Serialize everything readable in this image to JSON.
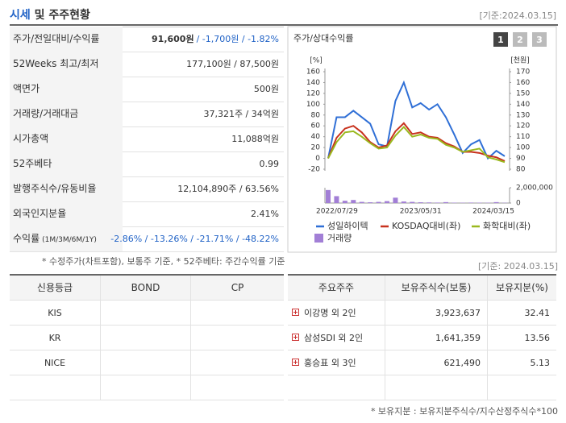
{
  "header": {
    "title": "시세",
    "title_rest": " 및 주주현황",
    "date": "[기준:2024.03.15]"
  },
  "summary": {
    "rows": [
      {
        "label": "주가/전일대비/수익률",
        "value": "91,600원",
        "change": "/ -1,700원 / -1.82%",
        "change_color": "#2062c6"
      },
      {
        "label": "52Weeks 최고/최저",
        "value": "177,100원 / 87,500원"
      },
      {
        "label": "액면가",
        "value": "500원"
      },
      {
        "label": "거래량/거래대금",
        "value": "37,321주 / 34억원"
      },
      {
        "label": "시가총액",
        "value": "11,088억원"
      },
      {
        "label": "52주베타",
        "value": "0.99"
      },
      {
        "label": "발행주식수/유동비율",
        "value": "12,104,890주 / 63.56%"
      },
      {
        "label": "외국인지분율",
        "value": "2.41%"
      },
      {
        "label": "수익률",
        "sublabel": "(1M/3M/6M/1Y)",
        "value": "-2.86% / -13.26% / -21.71% / -48.22%",
        "color": "#2062c6"
      }
    ],
    "note": "* 수정주가(차트포함), 보통주 기준, * 52주베타: 주간수익률 기준"
  },
  "chart_data": {
    "type": "line",
    "title": "주가/상대수익률",
    "tabs": [
      "1",
      "2",
      "3"
    ],
    "ylabel": "[%]",
    "y2label": "[천원]",
    "categories": [
      "2022/07/29",
      null,
      null,
      null,
      null,
      null,
      null,
      null,
      null,
      null,
      null,
      "2023/05/31",
      null,
      null,
      null,
      null,
      null,
      null,
      null,
      null,
      null,
      "2024/03/15"
    ],
    "ylim": [
      -20,
      160
    ],
    "yticks": [
      -20,
      0,
      20,
      40,
      60,
      80,
      100,
      120,
      140,
      160
    ],
    "y2lim": [
      80,
      170
    ],
    "y2ticks": [
      80,
      90,
      100,
      110,
      120,
      130,
      140,
      150,
      160,
      170
    ],
    "grid": false,
    "series": [
      {
        "name": "성일하이텍",
        "color": "#2f6fd6",
        "axis": "y2",
        "values": [
          90,
          128,
          128,
          134,
          128,
          122,
          103,
          101,
          143,
          160,
          137,
          141,
          135,
          140,
          128,
          112,
          95,
          103,
          107,
          90,
          97,
          92
        ]
      },
      {
        "name": "KOSDAQ대비(좌)",
        "color": "#c8321e",
        "values": [
          0,
          38,
          55,
          60,
          48,
          30,
          20,
          24,
          50,
          65,
          45,
          48,
          40,
          38,
          28,
          22,
          12,
          12,
          10,
          5,
          2,
          -5
        ]
      },
      {
        "name": "화학대비(좌)",
        "color": "#9ab81e",
        "values": [
          0,
          30,
          48,
          50,
          40,
          28,
          18,
          20,
          42,
          58,
          40,
          44,
          38,
          36,
          25,
          20,
          12,
          15,
          18,
          2,
          -2,
          -7
        ]
      }
    ],
    "volume": {
      "name": "거래량",
      "color": "#a27fd6",
      "values": [
        1700000,
        900000,
        300000,
        400000,
        150000,
        100000,
        150000,
        250000,
        700000,
        200000,
        150000,
        100000,
        80000,
        60000,
        120000,
        50000,
        40000,
        60000,
        50000,
        40000,
        120000,
        30000
      ],
      "ylim": [
        0,
        2000000
      ],
      "yticks": [
        0,
        {
          "value": 2000000,
          "label": "2,000,000"
        }
      ]
    }
  },
  "credit": {
    "headers": [
      "신용등급",
      "BOND",
      "CP"
    ],
    "rows": [
      [
        "KIS"
      ],
      [
        "KR"
      ],
      [
        "NICE"
      ]
    ]
  },
  "holders": {
    "date": "[기준: 2024.03.15]",
    "headers": [
      "주요주주",
      "보유주식수(보통)",
      "보유지분(%)"
    ],
    "rows": [
      [
        "이강명 외 2인",
        "3,923,637",
        "32.41"
      ],
      [
        "삼성SDI 외 2인",
        "1,641,359",
        "13.56"
      ],
      [
        "홍승표 외 3인",
        "621,490",
        "5.13"
      ]
    ],
    "note": "* 보유지분 : 보유지분주식수/지수산정주식수*100"
  }
}
